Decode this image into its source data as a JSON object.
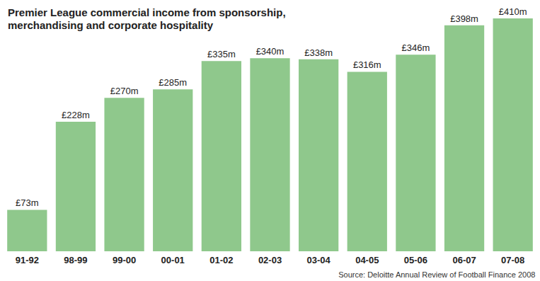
{
  "chart_data": {
    "type": "bar",
    "title": "Premier League commercial income from sponsorship, merchandising and corporate hospitality",
    "source": "Source: Deloitte Annual Review of Football Finance 2008",
    "categories": [
      "91-92",
      "98-99",
      "99-00",
      "00-01",
      "01-02",
      "02-03",
      "03-04",
      "04-05",
      "05-06",
      "06-07",
      "07-08"
    ],
    "values": [
      73,
      228,
      270,
      285,
      335,
      340,
      338,
      316,
      346,
      398,
      410
    ],
    "value_labels": [
      "£73m",
      "£228m",
      "£270m",
      "£285m",
      "£335m",
      "£340m",
      "£338m",
      "£316m",
      "£346m",
      "£398m",
      "£410m"
    ],
    "color": "#8fc88c",
    "ylim": [
      0,
      410
    ],
    "grid": false,
    "data_labels": true,
    "tick_labels": "x"
  }
}
